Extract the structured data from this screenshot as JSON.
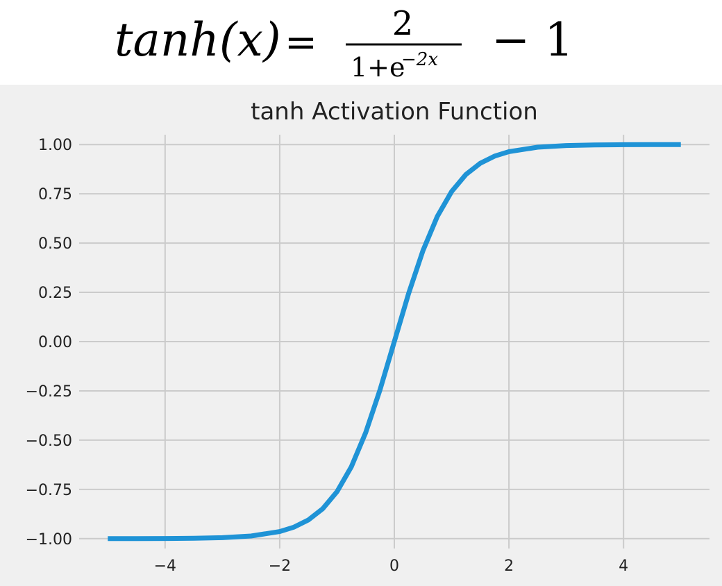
{
  "formula": {
    "lhs": "tanh(x)",
    "equals": "=",
    "numerator": "2",
    "denominator_base": "1+e",
    "denominator_exp": "−2x",
    "minus_one": "− 1"
  },
  "chart_data": {
    "type": "line",
    "title": "tanh Activation Function",
    "xlabel": "",
    "ylabel": "",
    "xlim": [
      -5.5,
      5.5
    ],
    "ylim": [
      -1.05,
      1.05
    ],
    "xticks": [
      -4,
      -2,
      0,
      2,
      4
    ],
    "xtick_labels": [
      "−4",
      "−2",
      "0",
      "2",
      "4"
    ],
    "yticks": [
      1.0,
      0.75,
      0.5,
      0.25,
      0.0,
      -0.25,
      -0.5,
      -0.75,
      -1.0
    ],
    "ytick_labels": [
      "1.00",
      "0.75",
      "0.50",
      "0.25",
      "0.00",
      "−0.25",
      "−0.50",
      "−0.75",
      "−1.00"
    ],
    "grid": true,
    "series": [
      {
        "color": "#1f93d6",
        "x": [
          -5,
          -4.5,
          -4,
          -3.5,
          -3,
          -2.5,
          -2,
          -1.75,
          -1.5,
          -1.25,
          -1,
          -0.75,
          -0.5,
          -0.25,
          0,
          0.25,
          0.5,
          0.75,
          1,
          1.25,
          1.5,
          1.75,
          2,
          2.5,
          3,
          3.5,
          4,
          4.5,
          5
        ],
        "y": [
          -0.9999,
          -0.9998,
          -0.9993,
          -0.9982,
          -0.9951,
          -0.9866,
          -0.964,
          -0.9414,
          -0.9051,
          -0.8483,
          -0.7616,
          -0.6351,
          -0.4621,
          -0.2449,
          0.0,
          0.2449,
          0.4621,
          0.6351,
          0.7616,
          0.8483,
          0.9051,
          0.9414,
          0.964,
          0.9866,
          0.9951,
          0.9982,
          0.9993,
          0.9998,
          0.9999
        ]
      }
    ]
  }
}
